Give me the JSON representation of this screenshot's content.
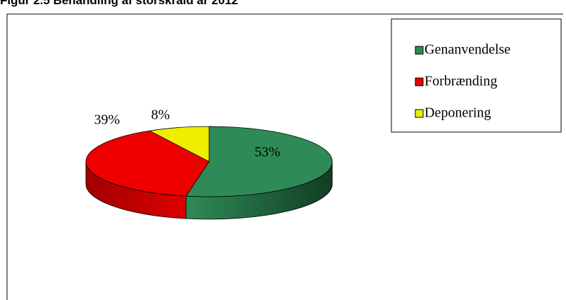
{
  "chart_data": {
    "type": "pie",
    "title": "Figur 2.5 Behandling af storskrald år 2012",
    "categories": [
      "Genanvendelse",
      "Forbrænding",
      "Deponering"
    ],
    "values": [
      53,
      39,
      8
    ],
    "value_labels": [
      "53%",
      "39%",
      "8%"
    ],
    "colors": [
      "#2e8b57",
      "#ee0000",
      "#eeee00"
    ],
    "legend": "upper right"
  }
}
